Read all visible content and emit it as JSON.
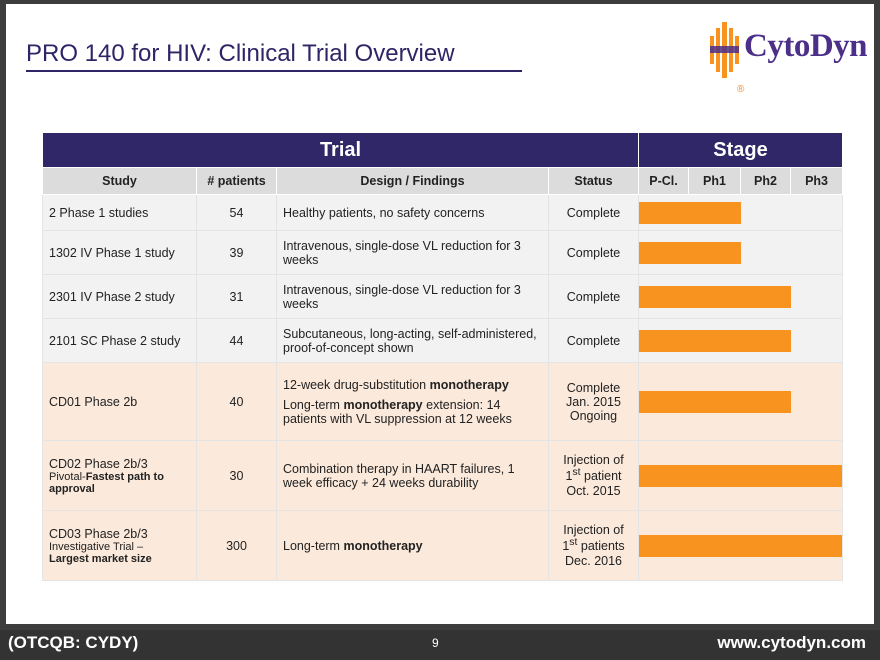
{
  "slide": {
    "title": "PRO 140 for HIV:  Clinical Trial Overview",
    "logo_text": "CytoDyn",
    "logo_reg": "®"
  },
  "table": {
    "group_headers": {
      "trial": "Trial",
      "stage": "Stage"
    },
    "columns": [
      "Study",
      "# patients",
      "Design / Findings",
      "Status",
      "P-Cl.",
      "Ph1",
      "Ph2",
      "Ph3"
    ],
    "rows": [
      {
        "study": "2 Phase 1 studies",
        "patients": "54",
        "design": "Healthy patients, no safety concerns",
        "status": "Complete",
        "stage_fraction": 0.5
      },
      {
        "study": "1302 IV Phase 1 study",
        "patients": "39",
        "design": "Intravenous, single-dose VL reduction for 3 weeks",
        "status": "Complete",
        "stage_fraction": 0.5
      },
      {
        "study": "2301 IV Phase 2 study",
        "patients": "31",
        "design": "Intravenous, single-dose VL reduction for 3 weeks",
        "status": "Complete",
        "stage_fraction": 0.75
      },
      {
        "study": "2101 SC Phase 2 study",
        "patients": "44",
        "design": "Subcutaneous, long-acting, self-administered, proof-of-concept shown",
        "status": "Complete",
        "stage_fraction": 0.75
      },
      {
        "study": "CD01 Phase 2b",
        "patients": "40",
        "design1_pre": "12-week drug-substitution ",
        "design1_bold": "monotherapy",
        "design2_pre": "Long-term ",
        "design2_bold": "monotherapy",
        "design2_post": " extension: 14 patients with VL suppression at 12 weeks",
        "status1": "Complete",
        "status2": "Jan. 2015",
        "status3": "Ongoing",
        "stage_fraction": 0.75
      },
      {
        "study1": "CD02 Phase 2b/3",
        "study2_pre": "Pivotal-",
        "study2_bold": "Fastest path to",
        "study3_bold": "approval",
        "patients": "30",
        "design": "Combination therapy in HAART failures, 1 week efficacy + 24 weeks durability",
        "status1": "Injection of",
        "status2_num": "1",
        "status2_sup": "st",
        "status2_rest": " patient",
        "status3": "Oct. 2015",
        "stage_fraction": 1.0
      },
      {
        "study1": "CD03 Phase 2b/3",
        "study2": "Investigative Trial –",
        "study3_bold": "Largest market size",
        "patients": "300",
        "design_pre": "Long-term ",
        "design_bold": "monotherapy",
        "status1": "Injection of",
        "status2_num": "1",
        "status2_sup": "st",
        "status2_rest": " patients",
        "status3": "Dec. 2016",
        "stage_fraction": 1.0
      }
    ]
  },
  "footer": {
    "ticker": "(OTCQB: CYDY)",
    "page": "9",
    "url": "www.cytodyn.com"
  },
  "colors": {
    "header_purple": "#2f2767",
    "bar_orange": "#f7931e",
    "row_gray": "#f2f2f2",
    "row_peach": "#fbe9db"
  }
}
